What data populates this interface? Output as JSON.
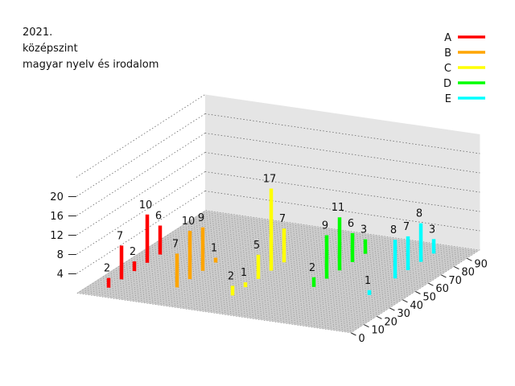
{
  "chart_data": {
    "type": "bar3d",
    "title_lines": [
      "2021.",
      "középszint",
      "magyar nyelv és irodalom"
    ],
    "xlabel": "",
    "ylabel": "",
    "zlabel": "",
    "x_ticks": [
      0,
      10,
      20,
      30,
      40,
      50,
      60,
      70,
      80,
      90
    ],
    "z_ticks": [
      4,
      8,
      12,
      16,
      20
    ],
    "xlim": [
      0,
      100
    ],
    "zlim": [
      0,
      24
    ],
    "legend_position": "top-right",
    "grid": true,
    "series": [
      {
        "name": "A",
        "color": "#ff0000",
        "points": [
          [
            10,
            2
          ],
          [
            20,
            7
          ],
          [
            30,
            2
          ],
          [
            40,
            10
          ],
          [
            50,
            6
          ]
        ]
      },
      {
        "name": "B",
        "color": "#ffa500",
        "points": [
          [
            20,
            7
          ],
          [
            30,
            10
          ],
          [
            40,
            9
          ],
          [
            50,
            1
          ]
        ]
      },
      {
        "name": "C",
        "color": "#ffff00",
        "points": [
          [
            20,
            2
          ],
          [
            30,
            1
          ],
          [
            40,
            5
          ],
          [
            50,
            17
          ],
          [
            60,
            7
          ]
        ]
      },
      {
        "name": "D",
        "color": "#00ff00",
        "points": [
          [
            40,
            2
          ],
          [
            50,
            9
          ],
          [
            60,
            11
          ],
          [
            70,
            6
          ],
          [
            80,
            3
          ]
        ]
      },
      {
        "name": "E",
        "color": "#00ffff",
        "points": [
          [
            40,
            1
          ],
          [
            60,
            8
          ],
          [
            70,
            7
          ],
          [
            80,
            8
          ],
          [
            90,
            3
          ]
        ]
      }
    ]
  }
}
